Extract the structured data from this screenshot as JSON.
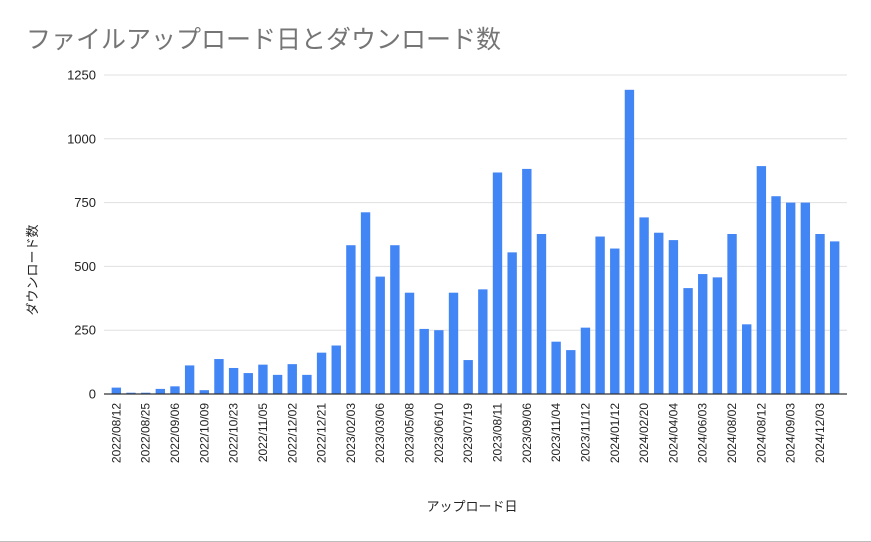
{
  "chart_data": {
    "type": "bar",
    "title": "ファイルアップロード日とダウンロード数",
    "xlabel": "アップロード日",
    "ylabel": "ダウンロード数",
    "ylim": [
      0,
      1250
    ],
    "yticks": [
      0,
      250,
      500,
      750,
      1000,
      1250
    ],
    "grid": true,
    "legend": "none",
    "bar_color": "#4285f4",
    "categories": [
      "2022/08/12",
      "",
      "2022/08/25",
      "",
      "2022/09/06",
      "",
      "2022/10/09",
      "",
      "2022/10/23",
      "",
      "2022/11/05",
      "",
      "2022/12/02",
      "",
      "2022/12/21",
      "",
      "2023/02/03",
      "",
      "2023/03/06",
      "",
      "2023/05/08",
      "",
      "2023/06/10",
      "",
      "2023/07/19",
      "",
      "2023/08/11",
      "",
      "2023/09/06",
      "",
      "2023/11/04",
      "",
      "2023/11/12",
      "",
      "2024/01/12",
      "",
      "2024/02/20",
      "",
      "2024/04/04",
      "",
      "2024/06/03",
      "",
      "2024/08/02",
      "",
      "2024/08/12",
      "",
      "2024/09/03",
      "",
      "2024/12/03",
      ""
    ],
    "values": [
      25,
      5,
      5,
      20,
      30,
      112,
      15,
      137,
      102,
      82,
      115,
      75,
      117,
      75,
      162,
      190,
      583,
      712,
      460,
      583,
      397,
      255,
      250,
      397,
      133,
      410,
      868,
      555,
      882,
      627,
      205,
      172,
      260,
      617,
      570,
      1192,
      692,
      632,
      603,
      415,
      470,
      457,
      627,
      273,
      893,
      775,
      750,
      750,
      627,
      598
    ]
  }
}
